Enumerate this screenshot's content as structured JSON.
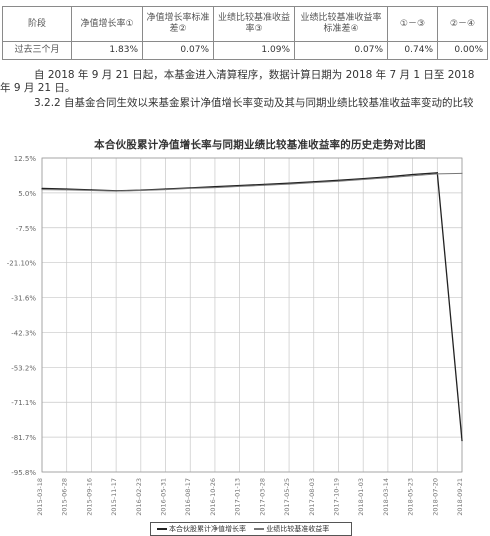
{
  "table": {
    "headers": [
      "阶段",
      "净值增长率①",
      "净值增长率标准差②",
      "业绩比较基准收益率③",
      "业绩比较基准收益率标准差④",
      "①－③",
      "②－④"
    ],
    "rows": [
      [
        "过去三个月",
        "1.83%",
        "0.07%",
        "1.09%",
        "0.07%",
        "0.74%",
        "0.00%"
      ]
    ]
  },
  "paragraphs": {
    "p1": "自 2018 年 9 月 21 日起，本基金进入清算程序，数据计算日期为 2018 年 7 月 1 日至 2018 年 9 月 21 日。",
    "p2": "3.2.2 自基金合同生效以来基金累计净值增长率变动及其与同期业绩比较基准收益率变动的比较"
  },
  "chart_data": {
    "type": "line",
    "title": "本合伙股累计净值增长率与同期业绩比较基准收益率的历史走势对比图",
    "y_ticks": [
      "12.5%",
      "5.0%",
      "-7.5%",
      "-21.10%",
      "-31.6%",
      "-42.3%",
      "-53.2%",
      "-71.1%",
      "-81.7%",
      "-95.8%"
    ],
    "x_ticks": [
      "2015-03-18",
      "2015-06-28",
      "2015-09-16",
      "2015-11-17",
      "2016-02-23",
      "2016-05-31",
      "2016-08-17",
      "2016-10-26",
      "2017-01-13",
      "2017-03-28",
      "2017-05-25",
      "2017-08-03",
      "2017-10-19",
      "2018-01-03",
      "2018-03-14",
      "2018-05-23",
      "2018-07-20",
      "2018-09-21"
    ],
    "ylim": [
      -95.8,
      12.5
    ],
    "grid": true,
    "series": [
      {
        "name": "累计净值增长率",
        "color": "#222222",
        "values": [
          2.0,
          1.8,
          1.5,
          1.2,
          1.4,
          1.8,
          2.2,
          2.6,
          3.0,
          3.4,
          3.8,
          4.3,
          4.8,
          5.4,
          6.0,
          6.8,
          7.4,
          -85.0
        ]
      },
      {
        "name": "业绩比较基准收益率",
        "color": "#777777",
        "values": [
          1.6,
          1.5,
          1.3,
          1.1,
          1.3,
          1.6,
          2.0,
          2.3,
          2.7,
          3.1,
          3.5,
          4.0,
          4.5,
          5.1,
          5.7,
          6.4,
          7.0,
          7.2
        ]
      }
    ]
  },
  "legend": {
    "items": [
      "本合伙股累计净值增长率",
      "业绩比较基准收益率"
    ]
  }
}
